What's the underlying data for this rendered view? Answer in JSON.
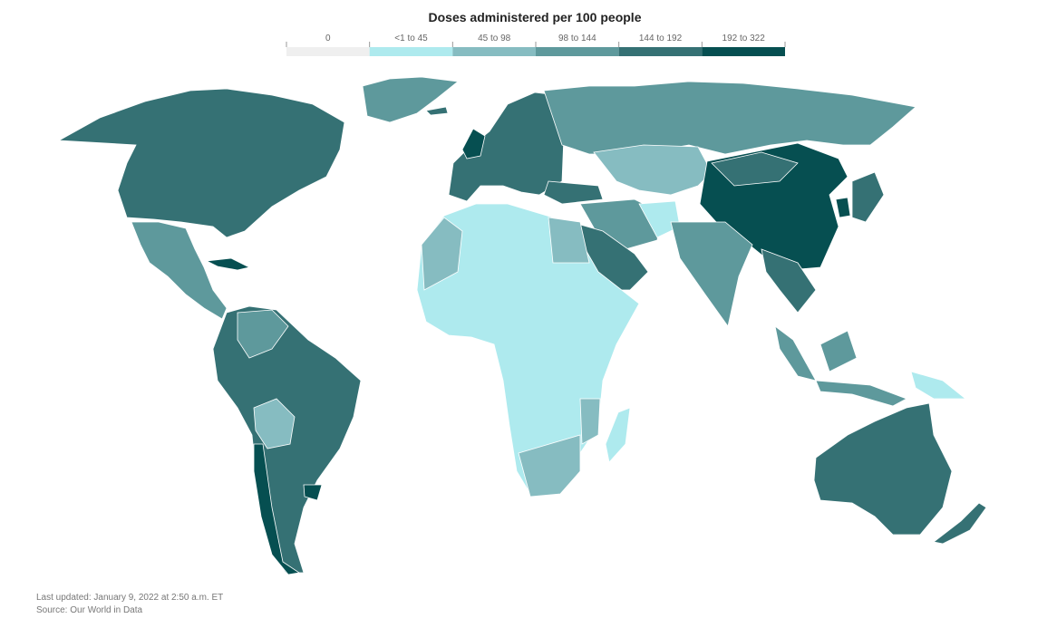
{
  "title": "Doses administered per 100 people",
  "legend": [
    {
      "label": "0",
      "color": "#efefef"
    },
    {
      "label": "<1 to 45",
      "color": "#aeeaee"
    },
    {
      "label": "45 to 98",
      "color": "#86bcc1"
    },
    {
      "label": "98 to 144",
      "color": "#5e999c"
    },
    {
      "label": "144 to 192",
      "color": "#357174"
    },
    {
      "label": "192 to 322",
      "color": "#064f51"
    }
  ],
  "footer": {
    "updated": "Last updated: January 9, 2022 at 2:50 a.m. ET",
    "source": "Source: Our World in Data"
  }
}
